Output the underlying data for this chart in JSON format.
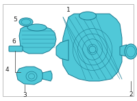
{
  "bg_color": "#ffffff",
  "border_color": "#bbbbbb",
  "part_color": "#50c8d8",
  "part_edge_color": "#1a7a90",
  "line_color": "#333333",
  "label_color": "#222222",
  "label_fontsize": 6.5,
  "fig_width": 2.0,
  "fig_height": 1.47,
  "dpi": 100
}
